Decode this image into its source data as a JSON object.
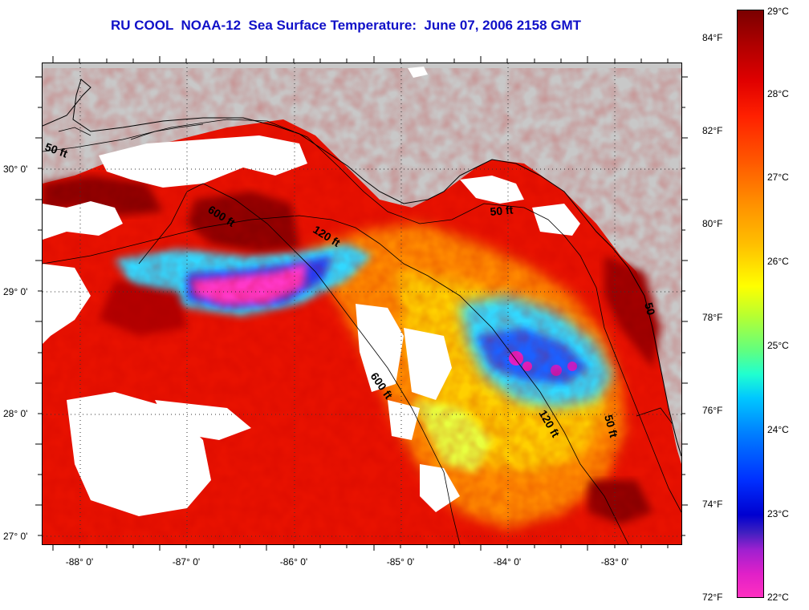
{
  "title": "RU COOL  NOAA-12  Sea Surface Temperature:  June 07, 2006 2158 GMT",
  "map": {
    "lat_labels": [
      "30° 0'",
      "29° 0'",
      "28° 0'",
      "27° 0'"
    ],
    "lon_labels": [
      "-88° 0'",
      "-87° 0'",
      "-86° 0'",
      "-85° 0'",
      "-84° 0'",
      "-83° 0'"
    ],
    "contours": {
      "c50_west": "50 ft",
      "c600_north": "600 ft",
      "c120_north": "120 ft",
      "c50_east": "50 ft",
      "c600_south": "600 ft",
      "c120_south": "120 ft",
      "c50_south": "50 ft"
    }
  },
  "colorbar": {
    "fahrenheit": [
      "84°F",
      "82°F",
      "80°F",
      "78°F",
      "76°F",
      "74°F",
      "72°F"
    ],
    "celsius": [
      "29°C",
      "28°C",
      "27°C",
      "26°C",
      "25°C",
      "24°C",
      "23°C",
      "22°C"
    ],
    "range_celsius": [
      22,
      29
    ],
    "colors_top_to_bottom": [
      "#7a0000",
      "#e00000",
      "#ff9000",
      "#ffff00",
      "#20ffd0",
      "#0030ff",
      "#ff30c0"
    ]
  },
  "colors": {
    "land": "#c8c8c8",
    "cloud": "#ffffff",
    "title": "#1010c8"
  }
}
